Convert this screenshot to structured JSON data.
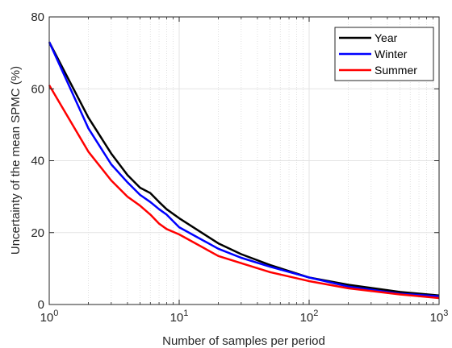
{
  "chart_data": {
    "type": "line",
    "title": "",
    "xlabel": "Number of samples per period",
    "ylabel": "Uncertainty of the mean SPMC (%)",
    "xscale": "log",
    "xlim": [
      1,
      1000
    ],
    "ylim": [
      0,
      80
    ],
    "x_ticks": [
      1,
      10,
      100,
      1000
    ],
    "x_tick_labels": [
      {
        "base": "10",
        "exp": "0"
      },
      {
        "base": "10",
        "exp": "1"
      },
      {
        "base": "10",
        "exp": "2"
      },
      {
        "base": "10",
        "exp": "3"
      }
    ],
    "y_ticks": [
      0,
      20,
      40,
      60,
      80
    ],
    "y_tick_labels": [
      "0",
      "20",
      "40",
      "60",
      "80"
    ],
    "grid": true,
    "legend_position": "top-right",
    "series": [
      {
        "name": "Year",
        "color": "#000000",
        "x": [
          1,
          2,
          3,
          4,
          5,
          6,
          7,
          8,
          10,
          20,
          30,
          50,
          100,
          200,
          500,
          1000
        ],
        "y": [
          73,
          52,
          42,
          36,
          32.5,
          31,
          28.5,
          26.5,
          24,
          17,
          14,
          11,
          7.5,
          5.5,
          3.5,
          2.5
        ]
      },
      {
        "name": "Winter",
        "color": "#0000ff",
        "x": [
          1,
          2,
          3,
          4,
          5,
          6,
          7,
          8,
          10,
          20,
          30,
          50,
          100,
          200,
          500,
          1000
        ],
        "y": [
          73,
          49,
          39,
          34,
          30.5,
          28.5,
          26.5,
          25,
          21.5,
          15.5,
          13,
          10.5,
          7.5,
          5,
          3,
          2.3
        ]
      },
      {
        "name": "Summer",
        "color": "#ff0000",
        "x": [
          1,
          2,
          3,
          4,
          5,
          6,
          7,
          8,
          10,
          20,
          30,
          50,
          100,
          200,
          500,
          1000
        ],
        "y": [
          61,
          42.5,
          34.5,
          30,
          27.5,
          25,
          22.5,
          21,
          19.5,
          13.5,
          11.5,
          9,
          6.5,
          4.5,
          2.8,
          1.8
        ]
      }
    ]
  }
}
